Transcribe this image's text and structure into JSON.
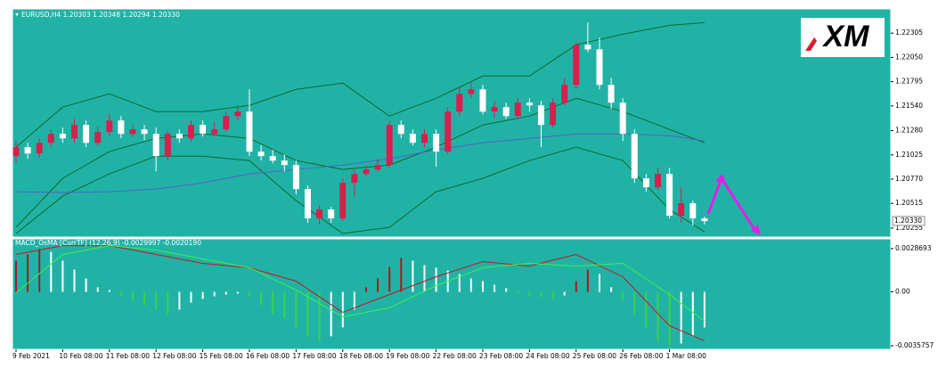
{
  "chart_data": [
    {
      "type": "candlestick",
      "title": "EURUSD,H4  1.20303 1.20348 1.20294 1.20330",
      "logo": "XM",
      "categories": [
        "9 Feb 2021",
        null,
        null,
        null,
        "10 Feb 08:00",
        null,
        null,
        null,
        "11 Feb 08:00",
        null,
        null,
        null,
        "12 Feb 08:00",
        null,
        null,
        null,
        "15 Feb 08:00",
        null,
        null,
        null,
        "16 Feb 08:00",
        null,
        null,
        null,
        "17 Feb 08:00",
        null,
        null,
        null,
        "18 Feb 08:00",
        null,
        null,
        null,
        "19 Feb 08:00",
        null,
        null,
        null,
        "22 Feb 08:00",
        null,
        null,
        null,
        "23 Feb 08:00",
        null,
        null,
        null,
        "24 Feb 08:00",
        null,
        null,
        null,
        "25 Feb 08:00",
        null,
        null,
        null,
        "26 Feb 08:00",
        null,
        null,
        null,
        "1 Mar 08:00",
        null,
        null,
        null
      ],
      "open": [
        1.21012,
        1.21106,
        1.2104,
        1.21152,
        1.21246,
        1.21199,
        1.2134,
        1.21152,
        1.21265,
        1.21386,
        1.21246,
        1.21293,
        1.21246,
        1.21012,
        1.21246,
        1.21199,
        1.2134,
        1.21246,
        1.21293,
        1.21433,
        1.2148,
        1.21059,
        1.21012,
        1.20965,
        1.20918,
        1.20666,
        1.20357,
        1.2045,
        1.20357,
        1.20731,
        1.20825,
        1.20872,
        1.20918,
        1.2134,
        1.21246,
        1.21152,
        1.21246,
        1.21059,
        1.2148,
        1.21667,
        1.21714,
        1.2148,
        1.21527,
        1.21433,
        1.21574,
        1.21546,
        1.2134,
        1.21574,
        1.21761,
        1.22182,
        1.22135,
        1.21761,
        1.21574,
        1.21246,
        1.20778,
        1.20684,
        1.20825,
        1.20385,
        1.20516,
        1.20357
      ],
      "high": [
        1.21171,
        1.21152,
        1.21199,
        1.21293,
        1.21312,
        1.21405,
        1.21386,
        1.21321,
        1.21461,
        1.21433,
        1.2134,
        1.2134,
        1.21312,
        1.21274,
        1.21293,
        1.21386,
        1.21386,
        1.21368,
        1.2148,
        1.21546,
        1.21714,
        1.21124,
        1.21078,
        1.21031,
        1.20965,
        1.20703,
        1.20497,
        1.20478,
        1.20778,
        1.20872,
        1.20918,
        1.20984,
        1.21386,
        1.21386,
        1.21293,
        1.21293,
        1.21293,
        1.21527,
        1.21742,
        1.21789,
        1.21761,
        1.21592,
        1.21574,
        1.2162,
        1.2162,
        1.21592,
        1.2162,
        1.21836,
        1.2221,
        1.22416,
        1.22257,
        1.21836,
        1.2162,
        1.21293,
        1.20825,
        1.2089,
        1.2089,
        1.20684,
        1.20544,
        1.20376
      ],
      "low": [
        1.20946,
        1.20984,
        1.20993,
        1.21106,
        1.21152,
        1.21152,
        1.21106,
        1.21124,
        1.21227,
        1.21199,
        1.21218,
        1.2118,
        1.20853,
        1.20965,
        1.21152,
        1.21171,
        1.21218,
        1.21227,
        1.21265,
        1.21386,
        1.21012,
        1.20965,
        1.20937,
        1.20853,
        1.2061,
        1.2031,
        1.20291,
        1.2031,
        1.20329,
        1.20591,
        1.20797,
        1.20844,
        1.2089,
        1.21199,
        1.21124,
        1.21106,
        1.209,
        1.21031,
        1.21433,
        1.2162,
        1.21452,
        1.21414,
        1.21405,
        1.21405,
        1.2148,
        1.21106,
        1.21312,
        1.21546,
        1.21714,
        1.22107,
        1.21714,
        1.21508,
        1.21171,
        1.20731,
        1.20638,
        1.20656,
        1.20357,
        1.2031,
        1.20282,
        1.20291
      ],
      "close": [
        1.21106,
        1.2104,
        1.21152,
        1.21246,
        1.21199,
        1.2134,
        1.21152,
        1.21265,
        1.21386,
        1.21246,
        1.21293,
        1.21246,
        1.21012,
        1.21246,
        1.21199,
        1.2134,
        1.21246,
        1.21293,
        1.21433,
        1.2148,
        1.21059,
        1.21012,
        1.20965,
        1.20918,
        1.20666,
        1.20357,
        1.2045,
        1.20357,
        1.20731,
        1.20825,
        1.20872,
        1.20918,
        1.2134,
        1.21246,
        1.21152,
        1.21246,
        1.21059,
        1.2148,
        1.21667,
        1.21714,
        1.2148,
        1.21527,
        1.21433,
        1.21574,
        1.21546,
        1.2134,
        1.21574,
        1.21761,
        1.22182,
        1.22135,
        1.21761,
        1.21574,
        1.21246,
        1.20778,
        1.20684,
        1.20825,
        1.20385,
        1.20516,
        1.20357,
        1.20329
      ],
      "up_color": "#d81f4e",
      "down_color": "#ffffff",
      "series": [
        {
          "color": "#0b6b2b",
          "x": [
            0,
            4,
            8,
            12,
            16,
            20,
            24,
            28,
            32,
            36,
            40,
            44,
            48,
            52,
            56,
            59
          ],
          "values": [
            1.21106,
            1.21527,
            1.21667,
            1.2148,
            1.2148,
            1.21546,
            1.21714,
            1.2178,
            1.21433,
            1.2162,
            1.21854,
            1.21854,
            1.22182,
            1.22294,
            1.22388,
            1.22416
          ]
        },
        {
          "color": "#0b6b2b",
          "x": [
            0,
            4,
            8,
            12,
            16,
            20,
            24,
            28,
            32,
            36,
            40,
            44,
            48,
            52,
            56,
            59
          ],
          "values": [
            1.20263,
            1.20778,
            1.21059,
            1.21199,
            1.21246,
            1.21199,
            1.20965,
            1.20872,
            1.20918,
            1.21106,
            1.2134,
            1.21433,
            1.2162,
            1.2148,
            1.21293,
            1.21152
          ]
        },
        {
          "color": "#0b6b2b",
          "x": [
            0,
            4,
            8,
            12,
            16,
            20,
            24,
            28,
            32,
            36,
            40,
            44,
            48,
            52,
            56,
            59
          ],
          "values": [
            1.20198,
            1.20591,
            1.20825,
            1.21012,
            1.21012,
            1.20965,
            1.20544,
            1.20198,
            1.20263,
            1.20638,
            1.20778,
            1.20965,
            1.21106,
            1.20965,
            1.2045,
            1.20216
          ]
        },
        {
          "color": "#5560c8",
          "x": [
            0,
            4,
            8,
            12,
            16,
            20,
            24,
            28,
            32,
            36,
            40,
            44,
            48,
            52,
            56,
            59
          ],
          "values": [
            1.20638,
            1.20628,
            1.20638,
            1.20666,
            1.20731,
            1.20825,
            1.20872,
            1.20918,
            1.20984,
            1.21078,
            1.21152,
            1.21199,
            1.21246,
            1.21246,
            1.21227,
            1.21171
          ]
        }
      ],
      "ylim": [
        1.2017,
        1.2256
      ],
      "yticks": [
        1.22305,
        {
          "value": 1.2205,
          "label": "1.22050"
        },
        1.21795,
        {
          "value": 1.2154,
          "label": "1.21540"
        },
        {
          "value": 1.2128,
          "label": "1.21280"
        },
        1.21025,
        {
          "value": 1.2077,
          "label": "1.20770"
        },
        1.20515,
        1.20255
      ],
      "last_price": {
        "value": 1.2033,
        "label": "1.20330"
      }
    },
    {
      "type": "macd",
      "title": "MACD_OsMA [CurrTF] (12,26,9) -0.0029997 -0.0020190",
      "values": [
        0.00207,
        0.00248,
        0.00284,
        0.00266,
        0.00207,
        0.00148,
        0.00089,
        0.0003,
        0.00012,
        -0.0003,
        -0.00059,
        -0.00089,
        -0.00118,
        -0.00148,
        -0.00118,
        -0.00071,
        -0.00047,
        -0.0003,
        -0.00018,
        -0.00012,
        -0.0003,
        -0.00089,
        -0.00148,
        -0.00177,
        -0.00236,
        -0.00295,
        -0.00325,
        -0.00295,
        -0.00236,
        -0.00118,
        0.0003,
        0.00089,
        0.00165,
        0.00225,
        0.00207,
        0.00177,
        0.0016,
        0.00142,
        0.00118,
        0.00089,
        0.00071,
        0.00047,
        0.00024,
        -0.00012,
        -0.00024,
        -0.00035,
        -0.00047,
        -0.00024,
        0.00071,
        0.00148,
        0.00118,
        0.0003,
        -0.00059,
        -0.00148,
        -0.00236,
        -0.00325,
        -0.00355,
        -0.00343,
        -0.00295,
        -0.00236
      ],
      "colors": {
        "rise": "#b0141e",
        "fall": "#3ad24a",
        "fade": "#ffffff"
      },
      "series": [
        {
          "color": "#c8141e",
          "x": [
            0,
            4,
            8,
            12,
            16,
            20,
            24,
            28,
            32,
            36,
            40,
            44,
            48,
            52,
            56,
            59
          ],
          "values": [
            0.00248,
            0.00307,
            0.00307,
            0.00248,
            0.00189,
            0.0016,
            0.00071,
            -0.00136,
            -0.00018,
            0.001,
            0.00201,
            0.00171,
            0.00248,
            0.001,
            -0.00225,
            -0.00325
          ]
        },
        {
          "color": "#3ef04a",
          "x": [
            0,
            4,
            8,
            12,
            16,
            20,
            24,
            28,
            32,
            36,
            40,
            44,
            48,
            52,
            56,
            59
          ],
          "values": [
            -6e-05,
            0.00248,
            0.00307,
            0.00278,
            0.00219,
            0.0016,
            0.00012,
            -0.00166,
            -0.00106,
            0.00041,
            0.0016,
            0.00189,
            0.00171,
            0.00189,
            -0.00018,
            -0.00195
          ]
        }
      ],
      "ylim": [
        -0.0037,
        0.0034
      ],
      "yticks": [
        0.0028693,
        {
          "value": 0,
          "label": "0.00"
        },
        -0.0035757
      ]
    }
  ]
}
